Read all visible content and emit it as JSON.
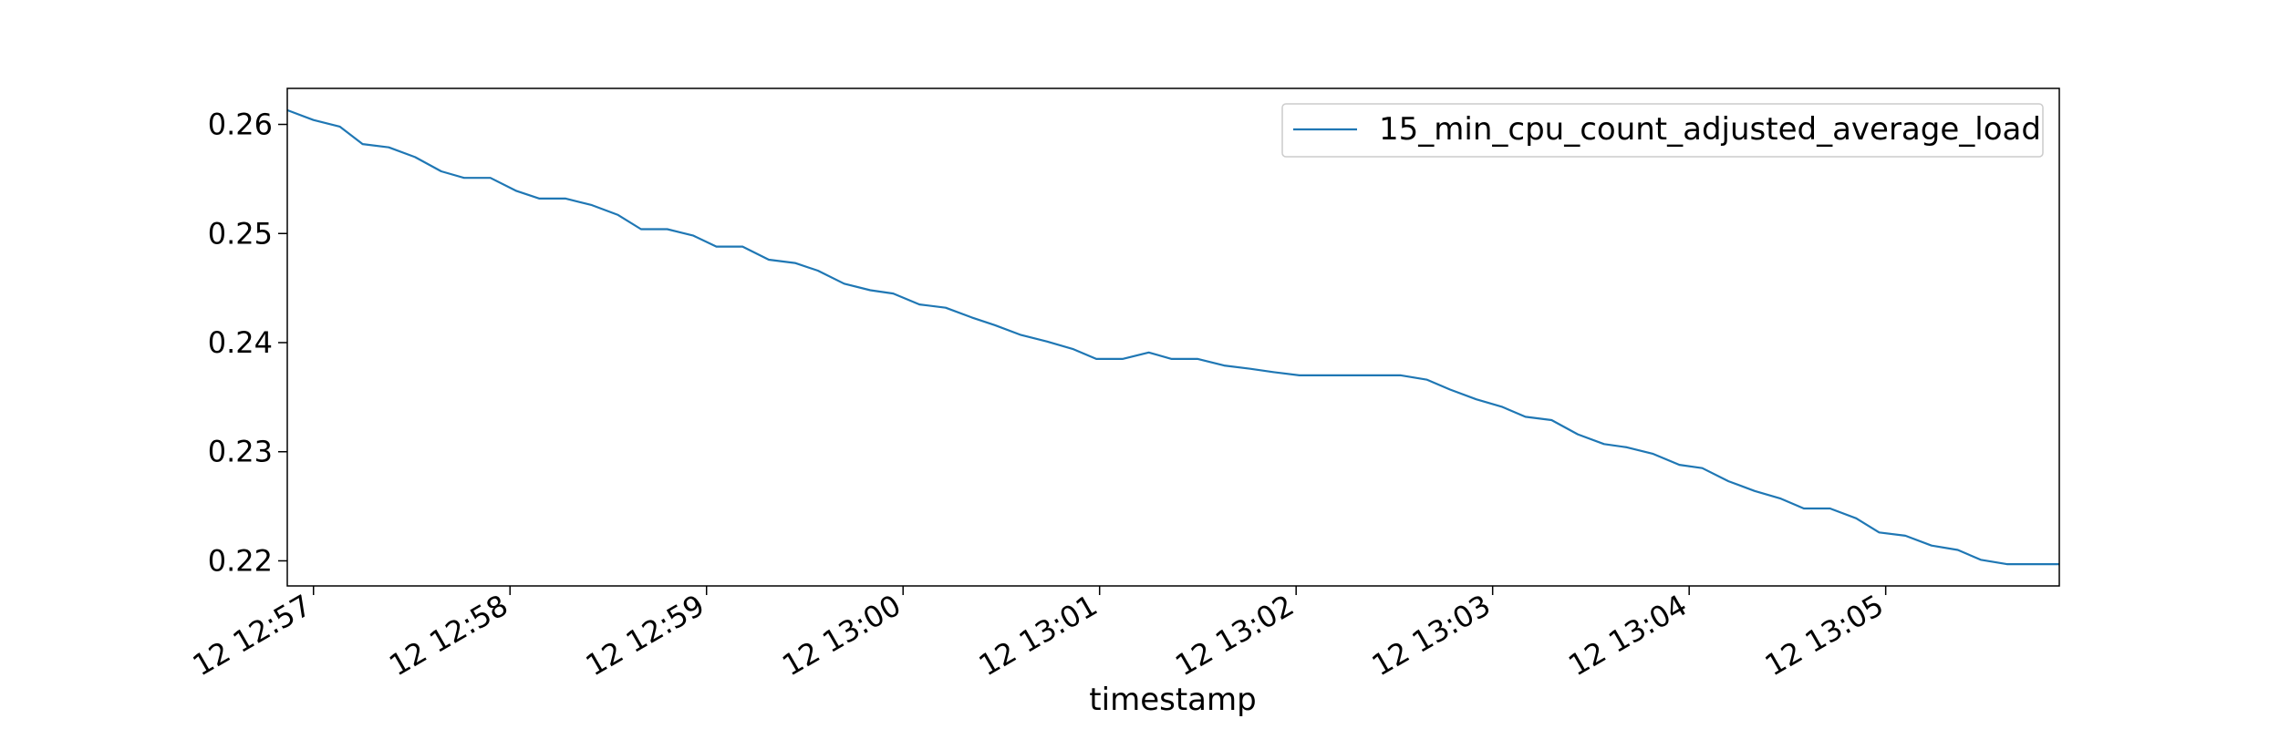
{
  "chart_data": {
    "type": "line",
    "title": "",
    "xlabel": "timestamp",
    "ylabel": "",
    "x_ticks": [
      "12 12:57",
      "12 12:58",
      "12 12:59",
      "12 13:00",
      "12 13:01",
      "12 13:02",
      "12 13:03",
      "12 13:04",
      "12 13:05"
    ],
    "y_ticks": [
      "0.22",
      "0.23",
      "0.24",
      "0.25",
      "0.26"
    ],
    "xlim": [
      "12:56:52",
      "12:05:55"
    ],
    "ylim": [
      0.2177,
      0.2633
    ],
    "legend_position": "top-right",
    "grid": false,
    "colors": {
      "series": "#1f77b4"
    },
    "series": [
      {
        "name": "15_min_cpu_count_adjusted_average_load",
        "x": [
          "12:56:52",
          "12:57:00",
          "12:57:08",
          "12:57:15",
          "12:57:23",
          "12:57:31",
          "12:57:39",
          "12:57:46",
          "12:57:54",
          "12:58:02",
          "12:58:09",
          "12:58:17",
          "12:58:25",
          "12:58:33",
          "12:58:40",
          "12:58:48",
          "12:58:56",
          "12:59:03",
          "12:59:11",
          "12:59:19",
          "12:59:27",
          "12:59:34",
          "12:59:42",
          "12:59:50",
          "12:59:57",
          "13:00:05",
          "13:00:13",
          "13:00:21",
          "13:00:28",
          "13:00:36",
          "13:00:44",
          "13:00:52",
          "13:00:59",
          "13:01:07",
          "13:01:15",
          "13:01:22",
          "13:01:30",
          "13:01:38",
          "13:01:46",
          "13:01:53",
          "13:02:01",
          "13:02:09",
          "13:02:16",
          "13:02:24",
          "13:02:32",
          "13:02:40",
          "13:02:47",
          "13:02:55",
          "13:03:03",
          "13:03:10",
          "13:03:18",
          "13:03:26",
          "13:03:34",
          "13:03:41",
          "13:03:49",
          "13:03:57",
          "13:04:04",
          "13:04:12",
          "13:04:20",
          "13:04:28",
          "13:04:35",
          "13:04:43",
          "13:04:51",
          "13:04:58",
          "13:05:06",
          "13:05:14",
          "13:05:22",
          "13:05:29",
          "13:05:37",
          "13:05:45",
          "13:05:53"
        ],
        "values": [
          0.2613,
          0.2604,
          0.2598,
          0.2582,
          0.2579,
          0.257,
          0.2557,
          0.2551,
          0.2551,
          0.2539,
          0.2532,
          0.2532,
          0.2526,
          0.2517,
          0.2504,
          0.2504,
          0.2498,
          0.2488,
          0.2488,
          0.2476,
          0.2473,
          0.2466,
          0.2454,
          0.2448,
          0.2445,
          0.2435,
          0.2432,
          0.2423,
          0.2416,
          0.2407,
          0.2401,
          0.2394,
          0.2385,
          0.2385,
          0.2391,
          0.2385,
          0.2385,
          0.2379,
          0.2376,
          0.2373,
          0.237,
          0.237,
          0.237,
          0.237,
          0.237,
          0.2366,
          0.2357,
          0.2348,
          0.2341,
          0.2332,
          0.2329,
          0.2316,
          0.2307,
          0.2304,
          0.2298,
          0.2288,
          0.2285,
          0.2273,
          0.2264,
          0.2257,
          0.2248,
          0.2248,
          0.2239,
          0.2226,
          0.2223,
          0.2214,
          0.221,
          0.2201,
          0.2197,
          0.2197,
          0.2197
        ]
      }
    ]
  }
}
